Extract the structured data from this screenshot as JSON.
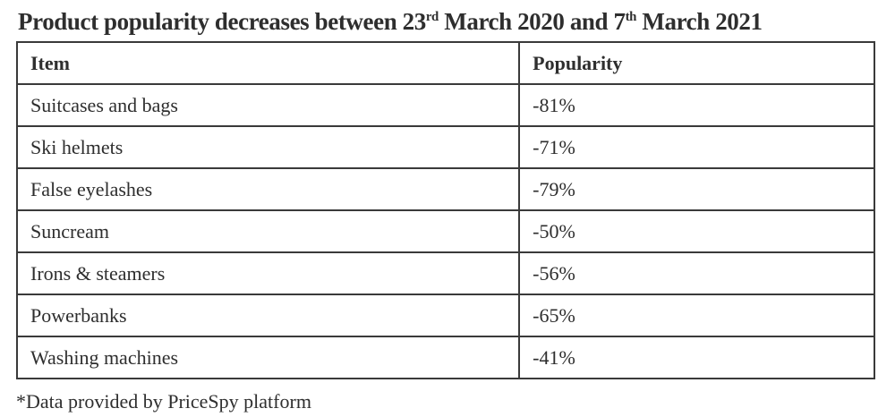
{
  "title": {
    "part1": "Product popularity decreases between 23",
    "sup1": "rd",
    "part2": " March 2020 and 7",
    "sup2": "th",
    "part3": " March 2021"
  },
  "table": {
    "headers": {
      "item": "Item",
      "popularity": "Popularity"
    },
    "rows": [
      {
        "item": "Suitcases and bags",
        "popularity": "-81%"
      },
      {
        "item": "Ski helmets",
        "popularity": "-71%"
      },
      {
        "item": "False eyelashes",
        "popularity": "-79%"
      },
      {
        "item": "Suncream",
        "popularity": "-50%"
      },
      {
        "item": "Irons & steamers",
        "popularity": "-56%"
      },
      {
        "item": "Powerbanks",
        "popularity": "-65%"
      },
      {
        "item": "Washing machines",
        "popularity": "-41%"
      }
    ]
  },
  "footnote": "*Data provided by PriceSpy platform",
  "colors": {
    "text": "#2e2e2e",
    "border": "#3a3a3a",
    "background": "#ffffff"
  },
  "chart_data": {
    "type": "table",
    "title": "Product popularity decreases between 23rd March 2020 and 7th March 2021",
    "columns": [
      "Item",
      "Popularity"
    ],
    "rows": [
      [
        "Suitcases and bags",
        "-81%"
      ],
      [
        "Ski helmets",
        "-71%"
      ],
      [
        "False eyelashes",
        "-79%"
      ],
      [
        "Suncream",
        "-50%"
      ],
      [
        "Irons & steamers",
        "-56%"
      ],
      [
        "Powerbanks",
        "-65%"
      ],
      [
        "Washing machines",
        "-41%"
      ]
    ],
    "values_numeric": [
      -81,
      -71,
      -79,
      -50,
      -56,
      -65,
      -41
    ],
    "footnote": "*Data provided by PriceSpy platform"
  }
}
